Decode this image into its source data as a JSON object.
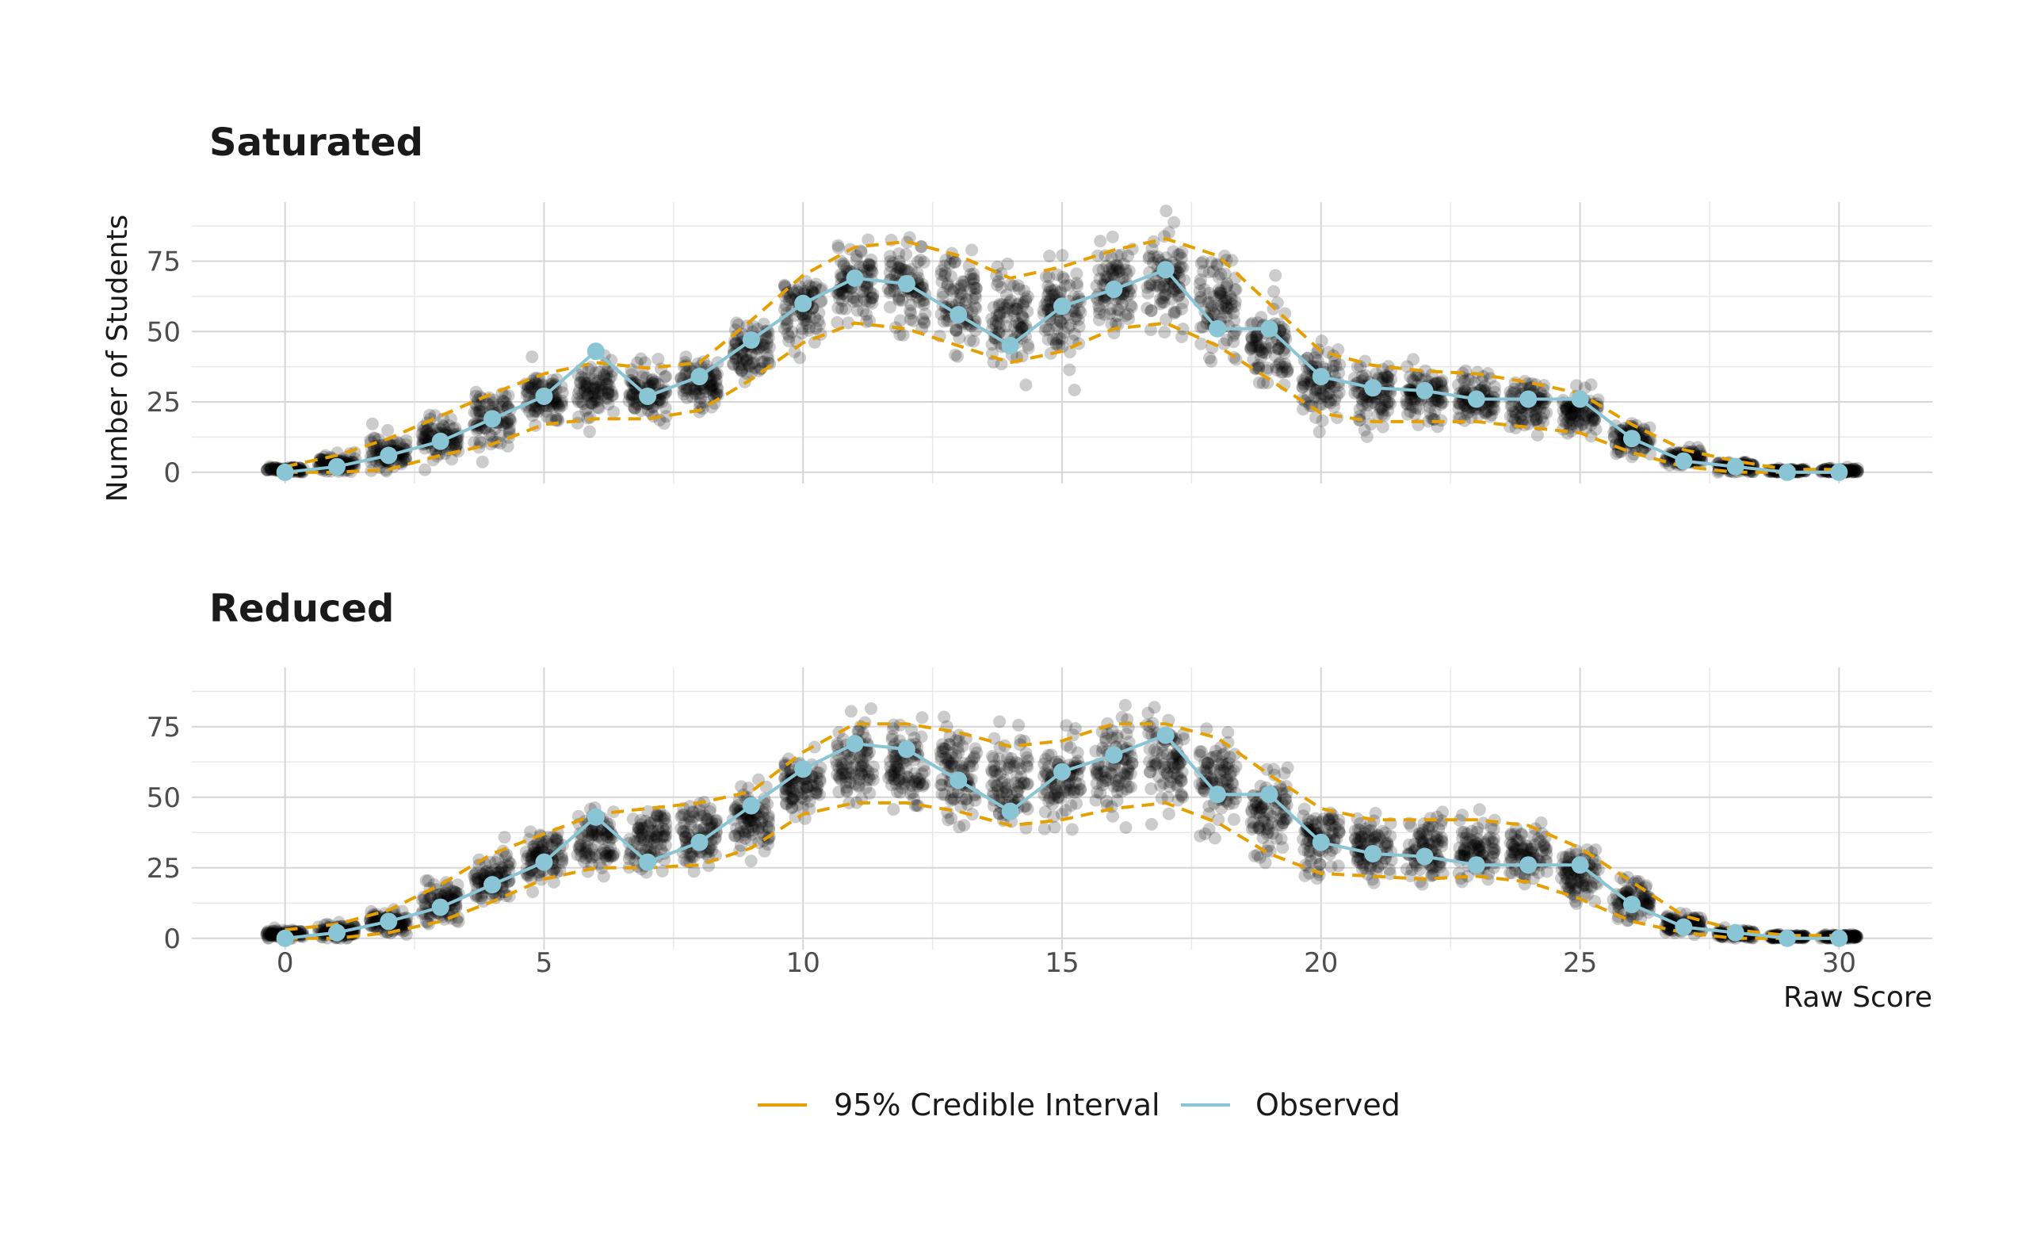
{
  "chart_data": {
    "type": "scatter",
    "xlabel": "Raw Score",
    "ylabel": "Number of Students",
    "xlim": [
      -1.8,
      31.8
    ],
    "ylim": [
      -4,
      96
    ],
    "x_ticks": [
      0,
      5,
      10,
      15,
      20,
      25,
      30
    ],
    "y_ticks": [
      0,
      25,
      50,
      75
    ],
    "grid": true,
    "legend": {
      "position": "bottom",
      "entries": [
        {
          "label": "95% Credible Interval",
          "color": "#E69F00",
          "style": "dashed-line"
        },
        {
          "label": "Observed",
          "color": "#89C5D4",
          "style": "line"
        }
      ]
    },
    "colors": {
      "points": "#000000",
      "interval": "#E69F00",
      "observed": "#89C5D4"
    },
    "x": [
      0,
      1,
      2,
      3,
      4,
      5,
      6,
      7,
      8,
      9,
      10,
      11,
      12,
      13,
      14,
      15,
      16,
      17,
      18,
      19,
      20,
      21,
      22,
      23,
      24,
      25,
      26,
      27,
      28,
      29,
      30
    ],
    "observed": [
      0,
      2,
      6,
      11,
      19,
      27,
      43,
      27,
      34,
      47,
      60,
      69,
      67,
      56,
      45,
      59,
      65,
      72,
      51,
      51,
      34,
      30,
      29,
      26,
      26,
      26,
      12,
      4,
      2,
      0,
      0
    ],
    "panels": [
      {
        "title": "Saturated",
        "interval_lower": [
          0,
          0,
          1,
          6,
          10,
          17,
          19,
          19,
          22,
          33,
          46,
          53,
          51,
          45,
          39,
          43,
          51,
          53,
          45,
          33,
          21,
          18,
          18,
          18,
          16,
          14,
          7,
          2,
          0,
          0,
          0
        ],
        "interval_upper": [
          2,
          6,
          12,
          20,
          28,
          35,
          39,
          37,
          39,
          54,
          70,
          80,
          82,
          77,
          69,
          73,
          79,
          83,
          77,
          60,
          43,
          38,
          36,
          35,
          32,
          28,
          17,
          8,
          4,
          1,
          1
        ]
      },
      {
        "title": "Reduced",
        "interval_lower": [
          0,
          0,
          2,
          6,
          13,
          21,
          25,
          25,
          26,
          32,
          44,
          48,
          48,
          45,
          40,
          42,
          46,
          48,
          41,
          30,
          23,
          22,
          21,
          22,
          20,
          14,
          6,
          2,
          0,
          0,
          0
        ],
        "interval_upper": [
          3,
          5,
          10,
          19,
          30,
          37,
          44,
          46,
          48,
          52,
          66,
          76,
          76,
          73,
          68,
          70,
          76,
          76,
          71,
          58,
          46,
          42,
          42,
          42,
          40,
          32,
          20,
          8,
          3,
          1,
          1
        ]
      }
    ]
  }
}
